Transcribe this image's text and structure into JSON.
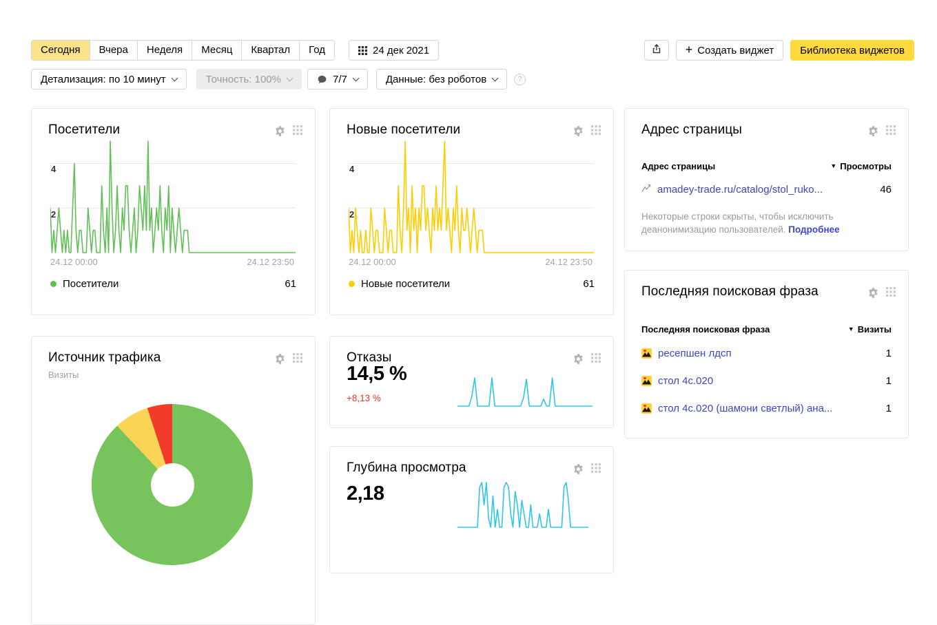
{
  "icons": {
    "sort_desc": "▼",
    "help": "?",
    "plus": "+"
  },
  "colors": {
    "accent_yellow": "#ffd93d",
    "selected_tab_yellow": "#fbe38a",
    "visitors_green": "#61bf56",
    "new_visitors_yellow": "#ffcc00",
    "sparkline_cyan": "#2ec6e6",
    "delta_red": "#e8362d",
    "link_blue": "#3b46c8",
    "pie_green": "#77c35c",
    "pie_yellow": "#fbd456",
    "pie_red": "#f23b29"
  },
  "toolbar": {
    "periods": [
      "Сегодня",
      "Вчера",
      "Неделя",
      "Месяц",
      "Квартал",
      "Год"
    ],
    "selected_period": "Сегодня",
    "date_label": "24 дек 2021",
    "create_widget_label": "Создать виджет",
    "library_label": "Библиотека виджетов",
    "detail_label": "Детализация: по 10 минут",
    "accuracy_label": "Точность: 100%",
    "comments_label": "7/7",
    "data_label": "Данные: без роботов"
  },
  "widgets": {
    "visitors": {
      "title": "Посетители",
      "legend_label": "Посетители",
      "legend_value": "61",
      "x_start": "24.12 00:00",
      "x_end": "24.12 23:50",
      "y_tick_top": "4",
      "y_tick_mid": "2"
    },
    "new_visitors": {
      "title": "Новые посетители",
      "legend_label": "Новые посетители",
      "legend_value": "61",
      "x_start": "24.12 00:00",
      "x_end": "24.12 23:50",
      "y_tick_top": "4",
      "y_tick_mid": "2"
    },
    "page_address": {
      "title": "Адрес страницы",
      "col_name": "Адрес страницы",
      "col_value": "Просмотры",
      "rows": [
        {
          "label": "amadey-trade.ru/catalog/stol_ruko...",
          "value": "46"
        }
      ],
      "note": "Некоторые строки скрыты, чтобы исключить деанонимизацию пользователей.",
      "note_link": "Подробнее"
    },
    "last_search_phrase": {
      "title": "Последняя поисковая фраза",
      "col_name": "Последняя поисковая фраза",
      "col_value": "Визиты",
      "rows": [
        {
          "label": "ресепшен лдсп",
          "value": "1"
        },
        {
          "label": "стол 4с.020",
          "value": "1"
        },
        {
          "label": "стол 4с.020 (шамони светлый) ана...",
          "value": "1"
        }
      ]
    },
    "traffic_source": {
      "title": "Источник трафика",
      "subtitle": "Визиты"
    },
    "bounces": {
      "title": "Отказы",
      "value": "14,5 %",
      "delta": "+8,13 %"
    },
    "depth": {
      "title": "Глубина просмотра",
      "value": "2,18"
    }
  },
  "chart_data": [
    {
      "id": "visitors",
      "type": "line",
      "title": "Посетители",
      "x_range": [
        "24.12 00:00",
        "24.12 23:50"
      ],
      "x_step_minutes": 10,
      "ylim": [
        0,
        5
      ],
      "gridlines": [
        2,
        4
      ],
      "color": "#61bf56",
      "total": 61,
      "values": [
        2,
        0,
        1,
        0,
        1,
        2,
        1,
        0,
        1,
        0,
        1,
        0,
        0,
        2,
        4,
        1,
        0,
        1,
        1,
        0,
        0,
        0,
        2,
        1,
        0,
        1,
        1,
        0,
        0,
        0,
        3,
        1,
        0,
        2,
        0,
        5,
        2,
        0,
        1,
        3,
        1,
        0,
        2,
        1,
        3,
        3,
        1,
        0,
        1,
        2,
        0,
        1,
        3,
        2,
        1,
        3,
        1,
        5,
        1,
        2,
        0,
        1,
        2,
        1,
        3,
        1,
        0,
        2,
        1,
        3,
        0,
        2,
        1,
        0,
        1,
        2,
        1,
        0,
        1,
        1,
        1,
        0,
        0,
        0,
        0,
        0,
        0,
        0,
        0,
        0,
        0,
        0,
        0,
        0,
        0,
        0,
        0,
        0,
        0,
        0,
        0,
        0,
        0,
        0,
        0,
        0,
        0,
        0,
        0,
        0,
        0,
        0,
        0,
        0,
        0,
        0,
        0,
        0,
        0,
        0,
        0,
        0,
        0,
        0,
        0,
        0,
        0,
        0,
        0,
        0,
        0,
        0,
        0,
        0,
        0,
        0,
        0,
        0,
        0,
        0,
        0,
        0,
        0,
        0
      ]
    },
    {
      "id": "new_visitors",
      "type": "line",
      "title": "Новые посетители",
      "x_range": [
        "24.12 00:00",
        "24.12 23:50"
      ],
      "x_step_minutes": 10,
      "ylim": [
        0,
        5
      ],
      "gridlines": [
        2,
        4
      ],
      "color": "#ffcc00",
      "total": 61,
      "values": [
        2,
        0,
        1,
        0,
        2,
        1,
        0,
        1,
        0,
        0,
        1,
        0,
        0,
        2,
        1,
        0,
        1,
        1,
        0,
        0,
        0,
        2,
        1,
        0,
        1,
        1,
        0,
        0,
        0,
        3,
        1,
        0,
        2,
        5,
        1,
        2,
        0,
        3,
        1,
        2,
        0,
        2,
        1,
        3,
        3,
        1,
        2,
        1,
        0,
        2,
        1,
        3,
        1,
        2,
        1,
        3,
        5,
        1,
        2,
        1,
        0,
        2,
        1,
        3,
        1,
        0,
        2,
        1,
        1,
        2,
        1,
        0,
        1,
        2,
        1,
        0,
        1,
        1,
        1,
        0,
        0,
        0,
        0,
        0,
        0,
        0,
        0,
        0,
        0,
        0,
        0,
        0,
        0,
        0,
        0,
        0,
        0,
        0,
        0,
        0,
        0,
        0,
        0,
        0,
        0,
        0,
        0,
        0,
        0,
        0,
        0,
        0,
        0,
        0,
        0,
        0,
        0,
        0,
        0,
        0,
        0,
        0,
        0,
        0,
        0,
        0,
        0,
        0,
        0,
        0,
        0,
        0,
        0,
        0,
        0,
        0,
        0,
        0,
        0,
        0,
        0,
        0,
        0,
        0
      ]
    },
    {
      "id": "traffic_source",
      "type": "pie",
      "title": "Источник трафика",
      "unit": "Визиты",
      "slices": [
        {
          "name": "green-slice",
          "color": "#77c35c",
          "value": 88
        },
        {
          "name": "yellow-slice",
          "color": "#fbd456",
          "value": 7
        },
        {
          "name": "red-slice",
          "color": "#f23b29",
          "value": 5
        }
      ]
    },
    {
      "id": "bounces",
      "type": "line",
      "sparkline": true,
      "title": "Отказы",
      "value": "14,5 %",
      "delta": "+8,13 %",
      "ylim": [
        0,
        1
      ],
      "color": "#2ec6e6",
      "values": [
        0,
        0,
        0,
        0,
        0,
        0.35,
        1,
        0,
        0,
        0,
        0,
        0,
        1,
        0,
        0,
        0,
        0,
        0,
        0,
        0,
        0,
        0,
        0,
        0.3,
        0.95,
        0,
        0,
        0,
        0,
        0,
        0.25,
        0,
        0,
        1,
        0,
        0,
        0,
        0,
        0,
        0,
        0,
        0,
        0,
        0,
        0,
        0,
        0,
        0
      ]
    },
    {
      "id": "depth",
      "type": "line",
      "sparkline": true,
      "title": "Глубина просмотра",
      "value": "2,18",
      "ylim": [
        0,
        1
      ],
      "color": "#2ec6e6",
      "values": [
        0,
        0,
        0,
        0,
        0,
        0,
        0,
        0,
        0,
        0,
        0.9,
        1,
        0.5,
        1,
        0.2,
        0,
        0.7,
        0,
        0.4,
        0,
        0,
        0.9,
        1,
        0.9,
        0.3,
        0,
        0.8,
        0.5,
        0,
        0.6,
        0.3,
        0,
        0,
        0.5,
        0,
        0,
        0,
        0.3,
        0,
        0,
        0,
        0.4,
        0,
        0,
        0,
        0,
        0,
        0,
        0.9,
        1,
        0.6,
        0,
        0,
        0,
        0,
        0,
        0,
        0,
        0,
        0
      ]
    }
  ]
}
